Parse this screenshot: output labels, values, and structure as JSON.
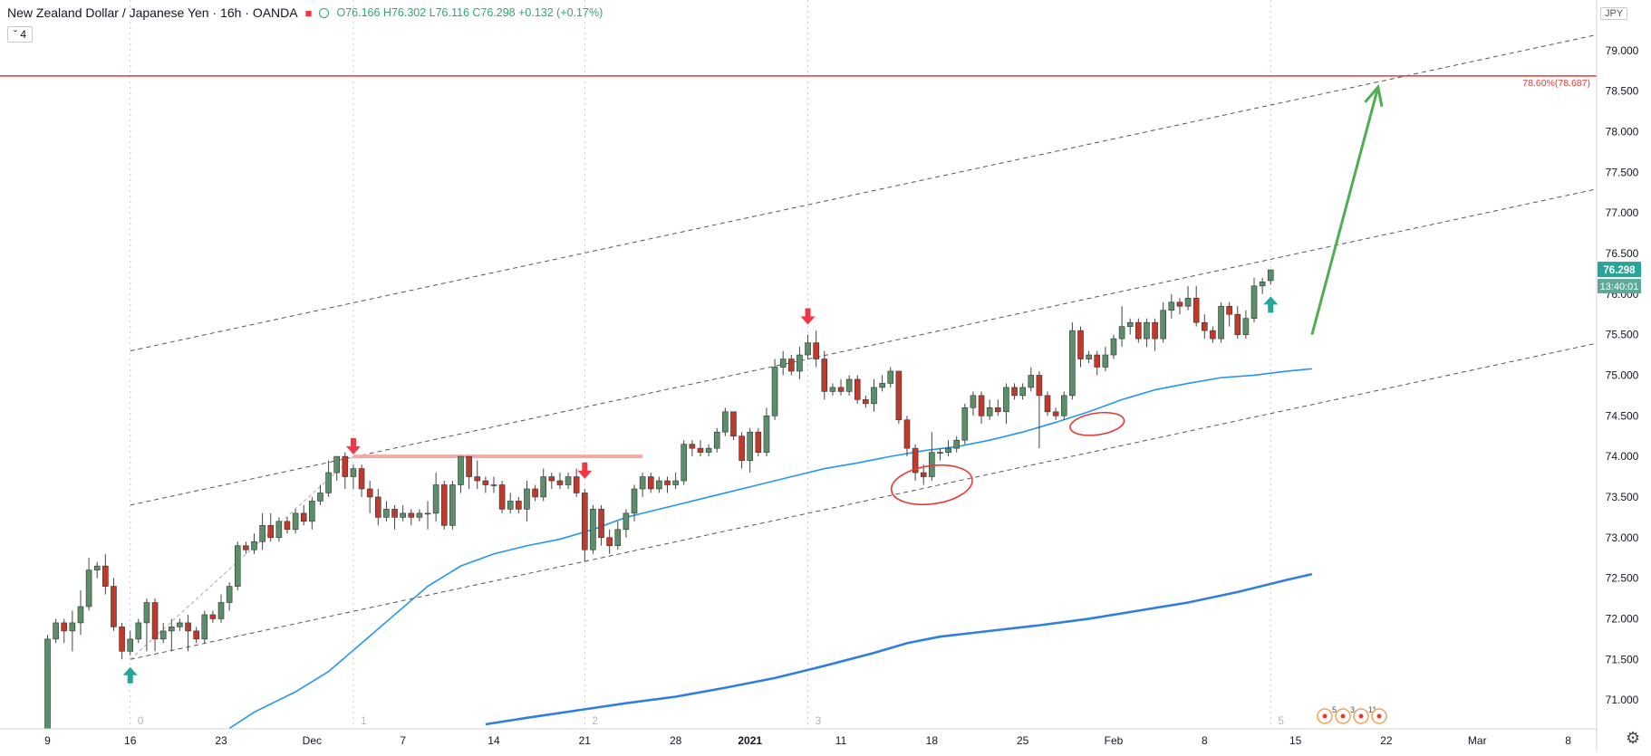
{
  "header": {
    "symbol": "New Zealand Dollar / Japanese Yen · 16h · OANDA",
    "ohlc": "O76.166 H76.302 L76.116 C76.298 +0.132 (+0.17%)",
    "interval_count": "4",
    "currency": "JPY"
  },
  "price_badge": {
    "value": "76.298",
    "countdown": "13:40:01",
    "color": "#26a69a"
  },
  "events": [
    "5",
    "3",
    "11"
  ],
  "chart_data": {
    "type": "candlestick",
    "y_ticks": [
      71.0,
      71.5,
      72.0,
      72.5,
      73.0,
      73.5,
      74.0,
      74.5,
      75.0,
      75.5,
      76.0,
      76.5,
      77.0,
      77.5,
      78.0,
      78.5,
      79.0
    ],
    "ylim": [
      70.7,
      79.6
    ],
    "x_ticks": [
      {
        "label": "9",
        "i": 0
      },
      {
        "label": "16",
        "i": 10
      },
      {
        "label": "23",
        "i": 21
      },
      {
        "label": "Dec",
        "i": 32
      },
      {
        "label": "7",
        "i": 43
      },
      {
        "label": "14",
        "i": 54
      },
      {
        "label": "21",
        "i": 65
      },
      {
        "label": "28",
        "i": 76
      },
      {
        "label": "2021",
        "i": 85
      },
      {
        "label": "11",
        "i": 96
      },
      {
        "label": "18",
        "i": 107
      },
      {
        "label": "25",
        "i": 118
      },
      {
        "label": "Feb",
        "i": 129
      },
      {
        "label": "8",
        "i": 140
      },
      {
        "label": "15",
        "i": 151
      },
      {
        "label": "22",
        "i": 162
      },
      {
        "label": "Mar",
        "i": 173
      },
      {
        "label": "8",
        "i": 184
      }
    ],
    "vertical_markers": [
      {
        "label": "0",
        "i": 10
      },
      {
        "label": "1",
        "i": 37
      },
      {
        "label": "2",
        "i": 65
      },
      {
        "label": "3",
        "i": 92
      },
      {
        "label": "5",
        "i": 148
      }
    ],
    "candles": [
      [
        70.6,
        71.75,
        70.5,
        71.8
      ],
      [
        71.75,
        71.95,
        71.7,
        72.0
      ],
      [
        71.95,
        71.85,
        71.7,
        72.0
      ],
      [
        71.85,
        71.95,
        71.6,
        72.1
      ],
      [
        71.95,
        72.15,
        71.8,
        72.35
      ],
      [
        72.15,
        72.6,
        72.1,
        72.75
      ],
      [
        72.6,
        72.65,
        72.5,
        72.7
      ],
      [
        72.65,
        72.4,
        72.3,
        72.8
      ],
      [
        72.4,
        71.9,
        71.85,
        72.5
      ],
      [
        71.9,
        71.6,
        71.5,
        71.95
      ],
      [
        71.6,
        71.75,
        71.55,
        71.85
      ],
      [
        71.75,
        71.95,
        71.7,
        72.0
      ],
      [
        71.95,
        72.2,
        71.6,
        72.25
      ],
      [
        72.2,
        71.75,
        71.6,
        72.25
      ],
      [
        71.75,
        71.85,
        71.7,
        71.95
      ],
      [
        71.85,
        71.9,
        71.6,
        72.0
      ],
      [
        71.9,
        71.95,
        71.85,
        72.0
      ],
      [
        71.95,
        71.85,
        71.6,
        72.05
      ],
      [
        71.85,
        71.75,
        71.7,
        71.9
      ],
      [
        71.75,
        72.05,
        71.7,
        72.1
      ],
      [
        72.05,
        72.0,
        71.95,
        72.1
      ],
      [
        72.0,
        72.2,
        71.95,
        72.3
      ],
      [
        72.2,
        72.4,
        72.1,
        72.45
      ],
      [
        72.4,
        72.9,
        72.35,
        72.95
      ],
      [
        72.9,
        72.85,
        72.8,
        72.95
      ],
      [
        72.85,
        72.95,
        72.8,
        73.05
      ],
      [
        72.95,
        73.15,
        72.85,
        73.3
      ],
      [
        73.15,
        73.0,
        72.95,
        73.3
      ],
      [
        73.0,
        73.2,
        72.95,
        73.25
      ],
      [
        73.2,
        73.1,
        73.05,
        73.25
      ],
      [
        73.1,
        73.3,
        73.05,
        73.35
      ],
      [
        73.3,
        73.2,
        73.15,
        73.4
      ],
      [
        73.2,
        73.45,
        73.1,
        73.5
      ],
      [
        73.45,
        73.55,
        73.4,
        73.65
      ],
      [
        73.55,
        73.8,
        73.5,
        73.95
      ],
      [
        73.8,
        74.0,
        73.7,
        74.0
      ],
      [
        74.0,
        73.75,
        73.6,
        74.05
      ],
      [
        73.75,
        73.85,
        73.6,
        73.9
      ],
      [
        73.85,
        73.6,
        73.5,
        73.9
      ],
      [
        73.6,
        73.5,
        73.3,
        73.7
      ],
      [
        73.5,
        73.25,
        73.15,
        73.6
      ],
      [
        73.25,
        73.35,
        73.2,
        73.45
      ],
      [
        73.35,
        73.25,
        73.1,
        73.4
      ],
      [
        73.25,
        73.3,
        73.2,
        73.4
      ],
      [
        73.3,
        73.25,
        73.15,
        73.35
      ],
      [
        73.25,
        73.3,
        73.2,
        73.35
      ],
      [
        73.3,
        73.3,
        73.1,
        73.45
      ],
      [
        73.3,
        73.65,
        73.2,
        73.8
      ],
      [
        73.65,
        73.15,
        73.1,
        73.7
      ],
      [
        73.15,
        73.65,
        73.1,
        73.7
      ],
      [
        73.65,
        74.0,
        73.55,
        74.0
      ],
      [
        74.0,
        73.75,
        73.6,
        74.0
      ],
      [
        73.75,
        73.7,
        73.6,
        73.95
      ],
      [
        73.7,
        73.65,
        73.55,
        73.75
      ],
      [
        73.65,
        73.65,
        73.55,
        73.75
      ],
      [
        73.65,
        73.35,
        73.3,
        73.7
      ],
      [
        73.35,
        73.45,
        73.3,
        73.55
      ],
      [
        73.45,
        73.35,
        73.3,
        73.5
      ],
      [
        73.35,
        73.6,
        73.2,
        73.7
      ],
      [
        73.6,
        73.5,
        73.45,
        73.65
      ],
      [
        73.5,
        73.75,
        73.45,
        73.85
      ],
      [
        73.75,
        73.7,
        73.6,
        73.8
      ],
      [
        73.7,
        73.65,
        73.6,
        73.8
      ],
      [
        73.65,
        73.75,
        73.6,
        73.8
      ],
      [
        73.75,
        73.55,
        73.5,
        73.85
      ],
      [
        73.55,
        72.85,
        72.7,
        73.6
      ],
      [
        72.85,
        73.35,
        72.8,
        73.4
      ],
      [
        73.35,
        73.0,
        72.9,
        73.4
      ],
      [
        73.0,
        72.9,
        72.8,
        73.1
      ],
      [
        72.9,
        73.1,
        72.85,
        73.2
      ],
      [
        73.1,
        73.3,
        73.0,
        73.35
      ],
      [
        73.3,
        73.6,
        73.2,
        73.65
      ],
      [
        73.6,
        73.75,
        73.5,
        73.8
      ],
      [
        73.75,
        73.6,
        73.55,
        73.8
      ],
      [
        73.6,
        73.7,
        73.55,
        73.75
      ],
      [
        73.7,
        73.65,
        73.55,
        73.75
      ],
      [
        73.65,
        73.7,
        73.6,
        73.8
      ],
      [
        73.7,
        74.15,
        73.65,
        74.2
      ],
      [
        74.15,
        74.1,
        74.0,
        74.2
      ],
      [
        74.1,
        74.05,
        74.0,
        74.2
      ],
      [
        74.05,
        74.1,
        74.0,
        74.15
      ],
      [
        74.1,
        74.3,
        74.05,
        74.35
      ],
      [
        74.3,
        74.55,
        74.25,
        74.6
      ],
      [
        74.55,
        74.25,
        74.2,
        74.55
      ],
      [
        74.25,
        73.95,
        73.85,
        74.3
      ],
      [
        73.95,
        74.3,
        73.8,
        74.35
      ],
      [
        74.3,
        74.05,
        74.0,
        74.35
      ],
      [
        74.05,
        74.5,
        74.0,
        74.6
      ],
      [
        74.5,
        75.1,
        74.45,
        75.2
      ],
      [
        75.1,
        75.2,
        75.0,
        75.3
      ],
      [
        75.2,
        75.05,
        75.0,
        75.25
      ],
      [
        75.05,
        75.25,
        74.95,
        75.35
      ],
      [
        75.25,
        75.4,
        75.2,
        75.5
      ],
      [
        75.4,
        75.2,
        75.1,
        75.55
      ],
      [
        75.2,
        74.8,
        74.7,
        75.3
      ],
      [
        74.8,
        74.85,
        74.75,
        74.9
      ],
      [
        74.85,
        74.8,
        74.75,
        74.95
      ],
      [
        74.8,
        74.95,
        74.75,
        75.0
      ],
      [
        74.95,
        74.7,
        74.65,
        75.0
      ],
      [
        74.7,
        74.65,
        74.6,
        74.75
      ],
      [
        74.65,
        74.85,
        74.55,
        74.95
      ],
      [
        74.85,
        74.9,
        74.8,
        75.0
      ],
      [
        74.9,
        75.05,
        74.85,
        75.1
      ],
      [
        75.05,
        74.45,
        74.4,
        75.05
      ],
      [
        74.45,
        74.1,
        74.0,
        74.5
      ],
      [
        74.1,
        73.8,
        73.7,
        74.15
      ],
      [
        73.8,
        73.75,
        73.65,
        73.9
      ],
      [
        73.75,
        74.05,
        73.7,
        74.3
      ],
      [
        74.05,
        74.05,
        73.95,
        74.1
      ],
      [
        74.05,
        74.1,
        74.0,
        74.2
      ],
      [
        74.1,
        74.2,
        74.05,
        74.25
      ],
      [
        74.2,
        74.6,
        74.15,
        74.65
      ],
      [
        74.6,
        74.75,
        74.5,
        74.8
      ],
      [
        74.75,
        74.5,
        74.4,
        74.8
      ],
      [
        74.5,
        74.6,
        74.45,
        74.7
      ],
      [
        74.6,
        74.55,
        74.5,
        74.7
      ],
      [
        74.55,
        74.85,
        74.4,
        74.9
      ],
      [
        74.85,
        74.75,
        74.7,
        74.9
      ],
      [
        74.75,
        74.85,
        74.7,
        74.9
      ],
      [
        74.85,
        75.0,
        74.8,
        75.1
      ],
      [
        75.0,
        74.75,
        74.1,
        75.05
      ],
      [
        74.75,
        74.55,
        74.5,
        74.8
      ],
      [
        74.55,
        74.5,
        74.45,
        74.6
      ],
      [
        74.5,
        74.75,
        74.45,
        74.8
      ],
      [
        74.75,
        75.55,
        74.7,
        75.65
      ],
      [
        75.55,
        75.2,
        75.1,
        75.6
      ],
      [
        75.2,
        75.25,
        75.15,
        75.3
      ],
      [
        75.25,
        75.1,
        75.0,
        75.3
      ],
      [
        75.1,
        75.25,
        75.05,
        75.35
      ],
      [
        75.25,
        75.45,
        75.2,
        75.5
      ],
      [
        75.45,
        75.6,
        75.35,
        75.85
      ],
      [
        75.6,
        75.65,
        75.5,
        75.7
      ],
      [
        75.65,
        75.45,
        75.4,
        75.7
      ],
      [
        75.45,
        75.65,
        75.35,
        75.7
      ],
      [
        75.65,
        75.45,
        75.3,
        75.7
      ],
      [
        75.45,
        75.8,
        75.4,
        75.9
      ],
      [
        75.8,
        75.9,
        75.7,
        76.0
      ],
      [
        75.9,
        75.85,
        75.75,
        75.95
      ],
      [
        75.85,
        75.95,
        75.8,
        76.1
      ],
      [
        75.95,
        75.65,
        75.6,
        76.1
      ],
      [
        75.65,
        75.55,
        75.45,
        75.75
      ],
      [
        75.55,
        75.45,
        75.4,
        75.6
      ],
      [
        75.45,
        75.85,
        75.4,
        75.9
      ],
      [
        75.85,
        75.75,
        75.6,
        75.9
      ],
      [
        75.75,
        75.5,
        75.45,
        75.85
      ],
      [
        75.5,
        75.7,
        75.45,
        75.8
      ],
      [
        75.7,
        76.1,
        75.65,
        76.2
      ],
      [
        76.1,
        76.15,
        76.0,
        76.2
      ],
      [
        76.166,
        76.298,
        76.116,
        76.302
      ]
    ],
    "ma_fast": [
      [
        22,
        70.65
      ],
      [
        25,
        70.85
      ],
      [
        30,
        71.1
      ],
      [
        34,
        71.35
      ],
      [
        38,
        71.7
      ],
      [
        42,
        72.05
      ],
      [
        46,
        72.4
      ],
      [
        50,
        72.65
      ],
      [
        54,
        72.8
      ],
      [
        58,
        72.9
      ],
      [
        62,
        72.98
      ],
      [
        66,
        73.1
      ],
      [
        70,
        73.25
      ],
      [
        74,
        73.35
      ],
      [
        78,
        73.45
      ],
      [
        82,
        73.55
      ],
      [
        86,
        73.65
      ],
      [
        90,
        73.75
      ],
      [
        94,
        73.85
      ],
      [
        98,
        73.92
      ],
      [
        102,
        74.0
      ],
      [
        106,
        74.07
      ],
      [
        110,
        74.12
      ],
      [
        114,
        74.2
      ],
      [
        118,
        74.3
      ],
      [
        122,
        74.42
      ],
      [
        126,
        74.55
      ],
      [
        130,
        74.7
      ],
      [
        134,
        74.82
      ],
      [
        138,
        74.9
      ],
      [
        142,
        74.97
      ],
      [
        146,
        75.0
      ],
      [
        150,
        75.05
      ],
      [
        153,
        75.08
      ]
    ],
    "ma_slow": [
      [
        53,
        70.7
      ],
      [
        58,
        70.78
      ],
      [
        64,
        70.87
      ],
      [
        70,
        70.96
      ],
      [
        76,
        71.04
      ],
      [
        82,
        71.15
      ],
      [
        88,
        71.27
      ],
      [
        94,
        71.42
      ],
      [
        100,
        71.58
      ],
      [
        104,
        71.7
      ],
      [
        108,
        71.78
      ],
      [
        114,
        71.85
      ],
      [
        120,
        71.92
      ],
      [
        126,
        72.0
      ],
      [
        132,
        72.1
      ],
      [
        138,
        72.2
      ],
      [
        144,
        72.33
      ],
      [
        150,
        72.48
      ],
      [
        153,
        72.55
      ]
    ],
    "channel_lines": [
      {
        "from": [
          10,
          71.5
        ],
        "to": [
          190,
          75.45
        ]
      },
      {
        "from": [
          10,
          73.4
        ],
        "to": [
          190,
          77.35
        ]
      },
      {
        "from": [
          10,
          75.3
        ],
        "to": [
          190,
          79.25
        ]
      }
    ],
    "fib_level": {
      "label": "78.60%(78.687)",
      "value": 78.687
    },
    "resistance": {
      "from": 37,
      "to": 72,
      "value": 74.0
    },
    "trend_arrow": {
      "from": [
        153,
        75.5
      ],
      "to": [
        161,
        78.55
      ]
    },
    "up_markers": [
      10,
      148
    ],
    "down_markers": [
      37,
      65,
      92
    ]
  }
}
